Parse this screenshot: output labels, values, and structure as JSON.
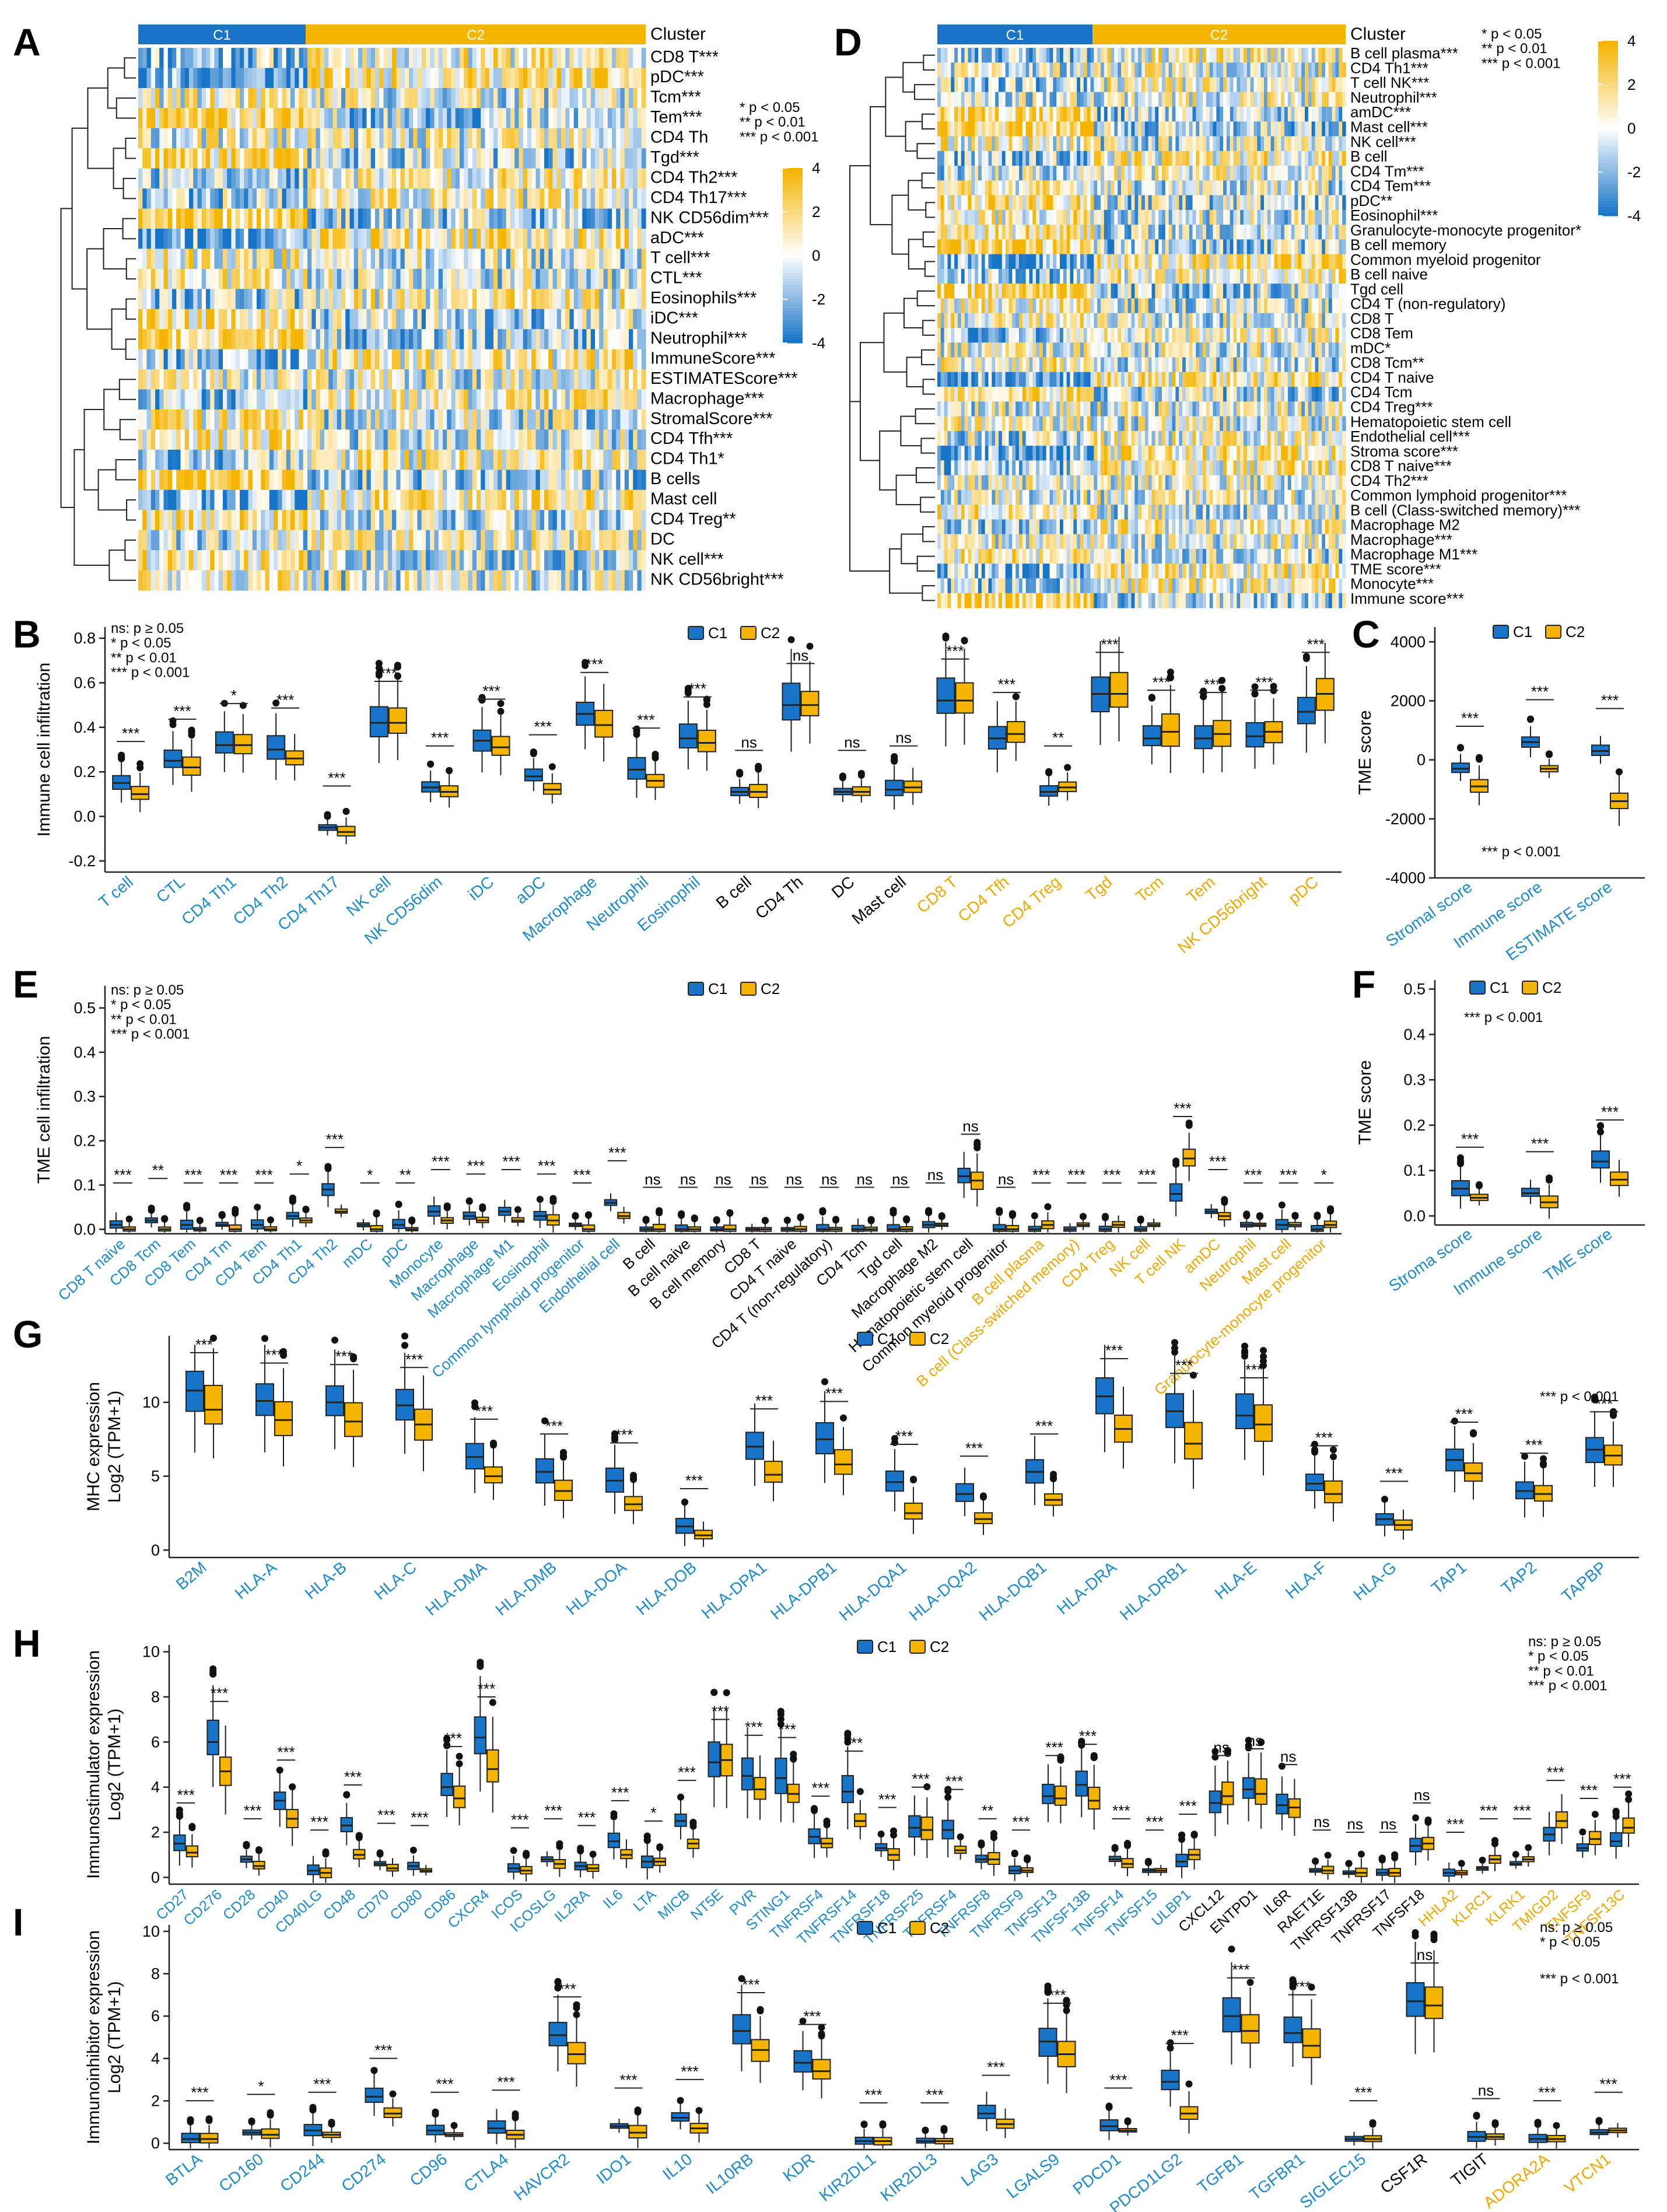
{
  "colors": {
    "c1": "#1874c7",
    "c2": "#f5b400",
    "blue_label": "#1c8ad0",
    "orange_label": "#f0a800",
    "black": "#000000"
  },
  "legend": {
    "c1": "C1",
    "c2": "C2",
    "cluster": "Cluster"
  },
  "sig_notes": {
    "full": [
      "ns: p ≥ 0.05",
      "* p < 0.05",
      "** p < 0.01",
      "*** p < 0.001"
    ],
    "three": [
      "* p < 0.05",
      "** p < 0.01",
      "*** p < 0.001"
    ],
    "one": [
      "*** p < 0.001"
    ],
    "two_ns": [
      "ns: p ≥ 0.05",
      "* p < 0.05"
    ]
  },
  "chart_data": [
    {
      "panel": "A",
      "type": "heatmap",
      "clusters": [
        "C1",
        "C2"
      ],
      "rows": [
        "CD8 T***",
        "pDC***",
        "Tcm***",
        "Tem***",
        "CD4 Th",
        "Tgd***",
        "CD4 Th2***",
        "CD4 Th17***",
        "NK CD56dim***",
        "aDC***",
        "T cell***",
        "CTL***",
        "Eosinophils***",
        "iDC***",
        "Neutrophil***",
        "ImmuneScore***",
        "ESTIMATEScore***",
        "Macrophage***",
        "StromalScore***",
        "CD4 Tfh***",
        "CD4 Th1*",
        "B cells",
        "Mast cell",
        "CD4 Treg**",
        "DC",
        "NK cell***",
        "NK CD56bright***"
      ],
      "scale": {
        "ticks": [
          "4",
          "2",
          "0",
          "-2",
          "-4"
        ]
      }
    },
    {
      "panel": "D",
      "type": "heatmap",
      "clusters": [
        "C1",
        "C2"
      ],
      "rows": [
        "B cell plasma***",
        "CD4 Th1***",
        "T cell NK***",
        "Neutrophil***",
        "amDC***",
        "Mast cell***",
        "NK cell***",
        "B cell",
        "CD4 Tm***",
        "CD4 Tem***",
        "pDC**",
        "Eosinophil***",
        "Granulocyte-monocyte progenitor*",
        "B cell memory",
        "Common myeloid progenitor",
        "B cell naive",
        "Tgd cell",
        "CD4 T (non-regulatory)",
        "CD8 T",
        "CD8 Tem",
        "mDC*",
        "CD8 Tcm**",
        "CD4 T naive",
        "CD4 Tcm",
        "CD4 Treg***",
        "Hematopoietic stem cell",
        "Endothelial cell***",
        "Stroma score***",
        "CD8 T naive***",
        "CD4 Th2***",
        "Common lymphoid progenitor***",
        "B cell (Class-switched memory)***",
        "Macrophage M2",
        "Macrophage***",
        "Macrophage M1***",
        "TME score***",
        "Monocyte***",
        "Immune score***"
      ],
      "scale": {
        "ticks": [
          "4",
          "2",
          "0",
          "-2",
          "-4"
        ]
      }
    },
    {
      "panel": "B",
      "type": "box",
      "ylabel": "Immune cell infiltration",
      "ylim": [
        -0.25,
        0.85
      ],
      "yticks": [
        "-0.2",
        "0.0",
        "0.2",
        "0.4",
        "0.6",
        "0.8"
      ],
      "categories": [
        "T cell",
        "CTL",
        "CD4 Th1",
        "CD4 Th2",
        "CD4 Th17",
        "NK cell",
        "NK CD56dim",
        "iDC",
        "aDC",
        "Macrophage",
        "Neutrophil",
        "Eosinophil",
        "B cell",
        "CD4 Th",
        "DC",
        "Mast cell",
        "CD8 T",
        "CD4 Tfh",
        "CD4 Treg",
        "Tgd",
        "Tcm",
        "Tem",
        "NK CD56bright",
        "pDC"
      ],
      "label_colors": [
        "b",
        "b",
        "b",
        "b",
        "b",
        "b",
        "b",
        "b",
        "b",
        "b",
        "b",
        "b",
        "k",
        "k",
        "k",
        "k",
        "o",
        "o",
        "o",
        "o",
        "o",
        "o",
        "o",
        "o"
      ],
      "sig": [
        "***",
        "***",
        "*",
        "***",
        "***",
        "***",
        "***",
        "***",
        "***",
        "***",
        "***",
        "***",
        "ns",
        "ns",
        "ns",
        "ns",
        "***",
        "***",
        "**",
        "***",
        "***",
        "***",
        "***",
        "***"
      ],
      "c1": [
        0.15,
        0.25,
        0.32,
        0.3,
        -0.05,
        0.42,
        0.13,
        0.34,
        0.18,
        0.46,
        0.21,
        0.35,
        0.11,
        0.5,
        0.11,
        0.12,
        0.52,
        0.35,
        0.11,
        0.55,
        0.35,
        0.35,
        0.36,
        0.47
      ],
      "c2": [
        0.1,
        0.22,
        0.32,
        0.26,
        -0.07,
        0.42,
        0.11,
        0.31,
        0.12,
        0.41,
        0.16,
        0.33,
        0.11,
        0.5,
        0.11,
        0.13,
        0.52,
        0.37,
        0.13,
        0.55,
        0.38,
        0.37,
        0.38,
        0.55
      ]
    },
    {
      "panel": "C",
      "type": "box",
      "ylabel": "TME score",
      "ylim": [
        -4000,
        4500
      ],
      "yticks": [
        "-4000",
        "-2000",
        "0",
        "2000",
        "4000"
      ],
      "categories": [
        "Stromal score",
        "Immune score",
        "ESTIMATE score"
      ],
      "label_colors": [
        "b",
        "b",
        "b"
      ],
      "sig": [
        "***",
        "***",
        "***"
      ],
      "c1": [
        -300,
        600,
        300
      ],
      "c2": [
        -900,
        -300,
        -1400
      ]
    },
    {
      "panel": "E",
      "type": "box",
      "ylabel": "TME cell infiltration",
      "ylim": [
        -0.01,
        0.55
      ],
      "yticks": [
        "0.0",
        "0.1",
        "0.2",
        "0.3",
        "0.4",
        "0.5"
      ],
      "categories": [
        "CD8 T naive",
        "CD8 Tcm",
        "CD8 Tem",
        "CD4 Tm",
        "CD4 Tem",
        "CD4 Th1",
        "CD4 Th2",
        "mDC",
        "pDC",
        "Monocyte",
        "Macrophage",
        "Macrophage M1",
        "Eosinophil",
        "Common lymphoid progenitor",
        "Endothelial cell",
        "B cell",
        "B cell naive",
        "B cell memory",
        "CD8 T",
        "CD4 T naive",
        "CD4 T (non-regulatory)",
        "CD4 Tcm",
        "Tgd cell",
        "Macrophage M2",
        "Hematopoietic stem cell",
        "Common myeloid progenitor",
        "B cell plasma",
        "B cell (Class-switched memory)",
        "CD4 Treg",
        "NK cell",
        "T cell NK",
        "amDC",
        "Neutrophil",
        "Mast cell",
        "Granulocyte-monocyte progenitor"
      ],
      "label_colors": [
        "b",
        "b",
        "b",
        "b",
        "b",
        "b",
        "b",
        "b",
        "b",
        "b",
        "b",
        "b",
        "b",
        "b",
        "b",
        "k",
        "k",
        "k",
        "k",
        "k",
        "k",
        "k",
        "k",
        "k",
        "k",
        "k",
        "o",
        "o",
        "o",
        "o",
        "o",
        "o",
        "o",
        "o",
        "o"
      ],
      "sig": [
        "***",
        "**",
        "***",
        "***",
        "***",
        "*",
        "***",
        "*",
        "**",
        "***",
        "***",
        "***",
        "***",
        "***",
        "***",
        "ns",
        "ns",
        "ns",
        "ns",
        "ns",
        "ns",
        "ns",
        "ns",
        "ns",
        "ns",
        "ns",
        "***",
        "***",
        "***",
        "***",
        "***",
        "***",
        "***",
        "***",
        "*"
      ],
      "c1": [
        0.01,
        0.02,
        0.01,
        0.01,
        0.01,
        0.03,
        0.09,
        0.01,
        0.01,
        0.04,
        0.03,
        0.04,
        0.03,
        0.01,
        0.06,
        0.0,
        0.0,
        0.0,
        0.0,
        0.0,
        0.0,
        0.0,
        0.0,
        0.01,
        0.12,
        0.0,
        0.0,
        0.0,
        0.0,
        0.0,
        0.08,
        0.04,
        0.01,
        0.01,
        0.0
      ],
      "c2": [
        0.0,
        0.0,
        0.0,
        0.0,
        0.0,
        0.02,
        0.04,
        0.0,
        0.0,
        0.02,
        0.02,
        0.02,
        0.02,
        0.0,
        0.03,
        0.0,
        0.0,
        0.0,
        0.0,
        0.0,
        0.0,
        0.0,
        0.0,
        0.01,
        0.11,
        0.0,
        0.01,
        0.01,
        0.01,
        0.01,
        0.16,
        0.03,
        0.01,
        0.01,
        0.01
      ]
    },
    {
      "panel": "F",
      "type": "box",
      "ylabel": "TME score",
      "ylim": [
        -0.02,
        0.52
      ],
      "yticks": [
        "0.0",
        "0.1",
        "0.2",
        "0.3",
        "0.4",
        "0.5"
      ],
      "categories": [
        "Stroma score",
        "Immune score",
        "TME score"
      ],
      "label_colors": [
        "b",
        "b",
        "b"
      ],
      "sig": [
        "***",
        "***",
        "***"
      ],
      "c1": [
        0.06,
        0.05,
        0.12
      ],
      "c2": [
        0.04,
        0.03,
        0.08
      ]
    },
    {
      "panel": "G",
      "type": "box",
      "ylabel": "MHC expression",
      "ylabel2": "Log2 (TPM+1)",
      "ylim": [
        -0.5,
        14.5
      ],
      "yticks": [
        "0",
        "5",
        "10"
      ],
      "categories": [
        "B2M",
        "HLA-A",
        "HLA-B",
        "HLA-C",
        "HLA-DMA",
        "HLA-DMB",
        "HLA-DOA",
        "HLA-DOB",
        "HLA-DPA1",
        "HLA-DPB1",
        "HLA-DQA1",
        "HLA-DQA2",
        "HLA-DQB1",
        "HLA-DRA",
        "HLA-DRB1",
        "HLA-E",
        "HLA-F",
        "HLA-G",
        "TAP1",
        "TAP2",
        "TAPBP"
      ],
      "label_colors": [
        "b",
        "b",
        "b",
        "b",
        "b",
        "b",
        "b",
        "b",
        "b",
        "b",
        "b",
        "b",
        "b",
        "b",
        "b",
        "b",
        "b",
        "b",
        "b",
        "b",
        "b"
      ],
      "sig": [
        "***",
        "***",
        "***",
        "***",
        "***",
        "***",
        "***",
        "***",
        "***",
        "***",
        "***",
        "***",
        "***",
        "***",
        "***",
        "***",
        "***",
        "***",
        "***",
        "***",
        "***"
      ],
      "c1": [
        10.8,
        10.1,
        10.0,
        9.8,
        6.3,
        5.3,
        4.7,
        1.6,
        7.0,
        7.5,
        4.6,
        3.8,
        5.3,
        10.4,
        9.4,
        9.1,
        4.5,
        2.1,
        6.1,
        4.0,
        6.8
      ],
      "c2": [
        9.5,
        8.8,
        8.7,
        8.5,
        5.0,
        4.0,
        3.1,
        1.0,
        5.1,
        5.8,
        2.5,
        2.1,
        3.4,
        8.2,
        7.2,
        8.5,
        3.8,
        1.7,
        5.2,
        3.8,
        6.4
      ]
    },
    {
      "panel": "H",
      "type": "box",
      "ylabel": "Immunostimulator expression",
      "ylabel2": "Log2 (TPM+1)",
      "ylim": [
        -0.3,
        10.3
      ],
      "yticks": [
        "0",
        "2",
        "4",
        "6",
        "8",
        "10"
      ],
      "categories": [
        "CD27",
        "CD276",
        "CD28",
        "CD40",
        "CD40LG",
        "CD48",
        "CD70",
        "CD80",
        "CD86",
        "CXCR4",
        "ICOS",
        "ICOSLG",
        "IL2RA",
        "IL6",
        "LTA",
        "MICB",
        "NT5E",
        "PVR",
        "STING1",
        "TNFRSF4",
        "TNFRSF14",
        "TNFRSF18",
        "TNFRSF25",
        "TNFRSF4",
        "TNFRSF8",
        "TNFRSF9",
        "TNFSF13",
        "TNFSF13B",
        "TNFSF14",
        "TNFSF15",
        "ULBP1",
        "CXCL12",
        "ENTPD1",
        "IL6R",
        "RAET1E",
        "TNFRSF13B",
        "TNFRSF17",
        "TNFSF18",
        "HHLA2",
        "KLRC1",
        "KLRK1",
        "TMIGD2",
        "TNFSF9",
        "TNFSF13C"
      ],
      "label_colors": [
        "b",
        "b",
        "b",
        "b",
        "b",
        "b",
        "b",
        "b",
        "b",
        "b",
        "b",
        "b",
        "b",
        "b",
        "b",
        "b",
        "b",
        "b",
        "b",
        "b",
        "b",
        "b",
        "b",
        "b",
        "b",
        "b",
        "b",
        "b",
        "b",
        "b",
        "b",
        "k",
        "k",
        "k",
        "k",
        "k",
        "k",
        "k",
        "o",
        "o",
        "o",
        "o",
        "o",
        "o"
      ],
      "sig": [
        "***",
        "***",
        "***",
        "***",
        "***",
        "***",
        "***",
        "***",
        "***",
        "***",
        "***",
        "***",
        "***",
        "***",
        "*",
        "***",
        "***",
        "***",
        "***",
        "***",
        "***",
        "***",
        "***",
        "***",
        "**",
        "***",
        "***",
        "***",
        "***",
        "***",
        "***",
        "ns",
        "ns",
        "ns",
        "ns",
        "ns",
        "ns",
        "ns",
        "***",
        "***",
        "***",
        "***",
        "***",
        "***"
      ],
      "c1": [
        1.5,
        6.0,
        0.8,
        3.4,
        0.3,
        2.3,
        0.6,
        0.5,
        4.0,
        6.2,
        0.4,
        0.8,
        0.5,
        1.6,
        0.7,
        2.5,
        5.1,
        4.5,
        4.4,
        1.8,
        3.8,
        1.3,
        2.2,
        2.1,
        0.8,
        0.3,
        3.6,
        4.1,
        0.8,
        0.3,
        0.7,
        3.3,
        3.9,
        3.2,
        0.3,
        0.2,
        0.2,
        1.4,
        0.2,
        0.4,
        0.6,
        1.9,
        1.3,
        1.6
      ],
      "c2": [
        1.1,
        4.7,
        0.5,
        2.6,
        0.2,
        1.0,
        0.4,
        0.3,
        3.5,
        4.8,
        0.3,
        0.6,
        0.4,
        1.0,
        0.7,
        1.5,
        5.2,
        3.9,
        3.7,
        1.5,
        2.5,
        1.0,
        2.1,
        1.2,
        0.8,
        0.3,
        3.5,
        3.4,
        0.6,
        0.3,
        1.0,
        3.6,
        3.7,
        3.1,
        0.3,
        0.2,
        0.2,
        1.5,
        0.2,
        0.8,
        0.8,
        2.5,
        1.7,
        2.2
      ]
    },
    {
      "panel": "I",
      "type": "box",
      "ylabel": "Immunoinhibitor expression",
      "ylabel2": "Log2 (TPM+1)",
      "ylim": [
        -0.3,
        10.3
      ],
      "yticks": [
        "0",
        "2",
        "4",
        "6",
        "8",
        "10"
      ],
      "categories": [
        "BTLA",
        "CD160",
        "CD244",
        "CD274",
        "CD96",
        "CTLA4",
        "HAVCR2",
        "IDO1",
        "IL10",
        "IL10RB",
        "KDR",
        "KIR2DL1",
        "KIR2DL3",
        "LAG3",
        "LGALS9",
        "PDCD1",
        "PDCD1LG2",
        "TGFB1",
        "TGFBR1",
        "SIGLEC15",
        "CSF1R",
        "TIGIT",
        "ADORA2A",
        "VTCN1"
      ],
      "label_colors": [
        "b",
        "b",
        "b",
        "b",
        "b",
        "b",
        "b",
        "b",
        "b",
        "b",
        "b",
        "b",
        "b",
        "b",
        "b",
        "b",
        "b",
        "b",
        "b",
        "b",
        "k",
        "k",
        "o",
        "o"
      ],
      "sig": [
        "***",
        "*",
        "***",
        "***",
        "***",
        "***",
        "***",
        "***",
        "***",
        "***",
        "***",
        "***",
        "***",
        "***",
        "***",
        "***",
        "***",
        "***",
        "***",
        "***",
        "ns",
        "ns",
        "***",
        "***"
      ],
      "c1": [
        0.2,
        0.5,
        0.6,
        2.2,
        0.6,
        0.7,
        5.1,
        0.8,
        1.2,
        5.3,
        3.8,
        0.1,
        0.1,
        1.4,
        4.8,
        0.8,
        2.9,
        6.0,
        5.2,
        0.2,
        6.7,
        0.3,
        0.2,
        0.5
      ],
      "c2": [
        0.2,
        0.4,
        0.4,
        1.4,
        0.4,
        0.4,
        4.2,
        0.5,
        0.7,
        4.4,
        3.4,
        0.1,
        0.1,
        0.9,
        4.2,
        0.6,
        1.4,
        5.3,
        4.6,
        0.2,
        6.5,
        0.3,
        0.2,
        0.6
      ]
    }
  ]
}
